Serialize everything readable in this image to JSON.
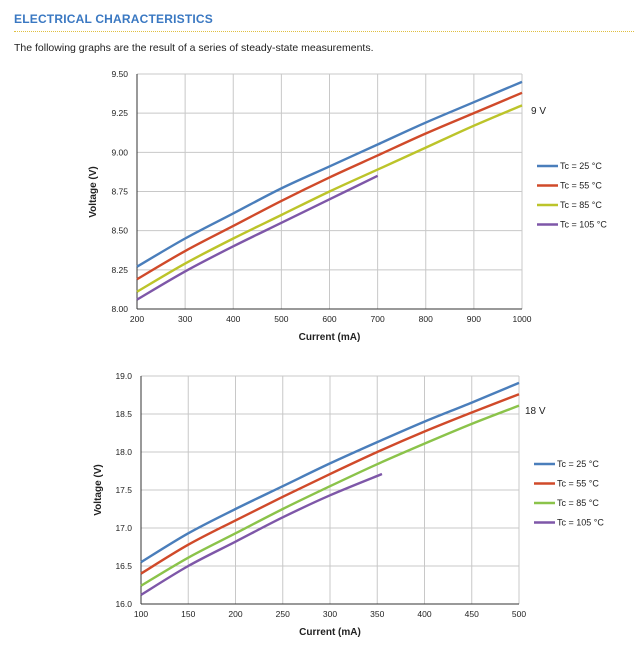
{
  "header": {
    "section_title": "ELECTRICAL CHARACTERISTICS",
    "intro": "The following graphs are the result of a series of steady-state measurements."
  },
  "chart_data": [
    {
      "type": "line",
      "annotation": "9 V",
      "xlabel": "Current (mA)",
      "ylabel": "Voltage (V)",
      "xlim": [
        200,
        1000
      ],
      "ylim": [
        8.0,
        9.5
      ],
      "xticks": [
        200,
        300,
        400,
        500,
        600,
        700,
        800,
        900,
        1000
      ],
      "yticks": [
        8.0,
        8.25,
        8.5,
        8.75,
        9.0,
        9.25,
        9.5
      ],
      "ytick_labels": [
        "8.00",
        "8.25",
        "8.50",
        "8.75",
        "9.00",
        "9.25",
        "9.50"
      ],
      "grid": true,
      "legend_position": "right",
      "series": [
        {
          "name": "Tc = 25 °C",
          "color": "#4a7ebb",
          "x": [
            200,
            300,
            400,
            500,
            600,
            700,
            800,
            900,
            1000
          ],
          "y": [
            8.27,
            8.45,
            8.61,
            8.77,
            8.91,
            9.05,
            9.19,
            9.32,
            9.45
          ]
        },
        {
          "name": "Tc = 55 °C",
          "color": "#d04a2a",
          "x": [
            200,
            300,
            400,
            500,
            600,
            700,
            800,
            900,
            1000
          ],
          "y": [
            8.19,
            8.37,
            8.53,
            8.69,
            8.84,
            8.98,
            9.12,
            9.25,
            9.38
          ]
        },
        {
          "name": "Tc = 85 °C",
          "color": "#bcc42a",
          "x": [
            200,
            300,
            400,
            500,
            600,
            700,
            800,
            900,
            1000
          ],
          "y": [
            8.11,
            8.29,
            8.45,
            8.6,
            8.75,
            8.89,
            9.03,
            9.17,
            9.3
          ]
        },
        {
          "name": "Tc = 105 °C",
          "color": "#7e57a8",
          "x": [
            200,
            300,
            400,
            500,
            600,
            700
          ],
          "y": [
            8.06,
            8.24,
            8.4,
            8.55,
            8.7,
            8.85
          ]
        }
      ]
    },
    {
      "type": "line",
      "annotation": "18 V",
      "xlabel": "Current (mA)",
      "ylabel": "Voltage (V)",
      "xlim": [
        100,
        500
      ],
      "ylim": [
        16.0,
        19.0
      ],
      "xticks": [
        100,
        150,
        200,
        250,
        300,
        350,
        400,
        450,
        500
      ],
      "yticks": [
        16.0,
        16.5,
        17.0,
        17.5,
        18.0,
        18.5,
        19.0
      ],
      "ytick_labels": [
        "16.0",
        "16.5",
        "17.0",
        "17.5",
        "18.0",
        "18.5",
        "19.0"
      ],
      "grid": true,
      "legend_position": "right",
      "series": [
        {
          "name": "Tc = 25 °C",
          "color": "#4a7ebb",
          "x": [
            100,
            150,
            200,
            250,
            300,
            350,
            400,
            450,
            500
          ],
          "y": [
            16.55,
            16.93,
            17.25,
            17.55,
            17.85,
            18.13,
            18.4,
            18.65,
            18.91
          ]
        },
        {
          "name": "Tc = 55 °C",
          "color": "#d04a2a",
          "x": [
            100,
            150,
            200,
            250,
            300,
            350,
            400,
            450,
            500
          ],
          "y": [
            16.4,
            16.78,
            17.1,
            17.41,
            17.71,
            18.0,
            18.27,
            18.52,
            18.76
          ]
        },
        {
          "name": "Tc = 85 °C",
          "color": "#8bc34a",
          "x": [
            100,
            150,
            200,
            250,
            300,
            350,
            400,
            450,
            500
          ],
          "y": [
            16.24,
            16.61,
            16.93,
            17.25,
            17.55,
            17.84,
            18.11,
            18.37,
            18.61
          ]
        },
        {
          "name": "Tc = 105 °C",
          "color": "#7e57a8",
          "x": [
            100,
            150,
            200,
            250,
            300,
            355
          ],
          "y": [
            16.12,
            16.5,
            16.82,
            17.14,
            17.43,
            17.71
          ]
        }
      ]
    }
  ]
}
